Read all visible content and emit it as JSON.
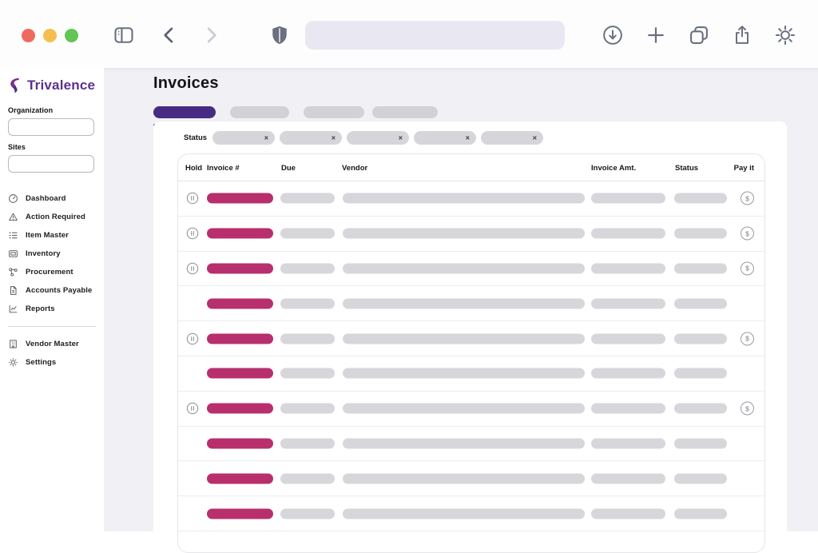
{
  "browser": {
    "traffic_lights": [
      "#ee6a5f",
      "#f5bf4f",
      "#62c554"
    ],
    "icons": [
      "sidebar-toggle",
      "back",
      "forward",
      "shield",
      "download",
      "new-tab",
      "tab-overview",
      "share",
      "settings"
    ],
    "url_value": "",
    "icon_color": "#6a7080"
  },
  "sidebar": {
    "logo_text": "Trivalence",
    "logo_color": "#5b3090",
    "filters": [
      {
        "label": "Organization",
        "value": ""
      },
      {
        "label": "Sites",
        "value": ""
      }
    ],
    "nav": [
      {
        "label": "Dashboard",
        "icon": "dashboard-icon"
      },
      {
        "label": "Action Required",
        "icon": "warning-icon"
      },
      {
        "label": "Item Master",
        "icon": "list-icon"
      },
      {
        "label": "Inventory",
        "icon": "inventory-icon"
      },
      {
        "label": "Procurement",
        "icon": "network-icon"
      },
      {
        "label": "Accounts Payable",
        "icon": "document-icon"
      },
      {
        "label": "Reports",
        "icon": "chart-icon"
      }
    ],
    "nav_secondary": [
      {
        "label": "Vendor Master",
        "icon": "building-icon"
      },
      {
        "label": "Settings",
        "icon": "gear-icon"
      }
    ]
  },
  "main": {
    "title": "Invoices",
    "tabs": {
      "active_color": "#472a82",
      "underline_color": "#5b34a6",
      "inactive_skeleton_count": 3
    },
    "filter": {
      "label": "Status",
      "chip_count": 5,
      "chip_close": "×"
    },
    "table": {
      "columns": [
        "Hold",
        "Invoice #",
        "Due",
        "Vendor",
        "Invoice Amt.",
        "Status",
        "Pay it"
      ],
      "skeleton_accent": "#b82f6d",
      "skeleton_gray": "#d7d6da",
      "pay_icon_glyph": "$",
      "rows": [
        {
          "hold": true,
          "pay": true
        },
        {
          "hold": true,
          "pay": true
        },
        {
          "hold": true,
          "pay": true
        },
        {
          "hold": false,
          "pay": false
        },
        {
          "hold": true,
          "pay": true
        },
        {
          "hold": false,
          "pay": false
        },
        {
          "hold": true,
          "pay": true
        },
        {
          "hold": false,
          "pay": false
        },
        {
          "hold": false,
          "pay": false
        },
        {
          "hold": false,
          "pay": false
        }
      ]
    }
  }
}
